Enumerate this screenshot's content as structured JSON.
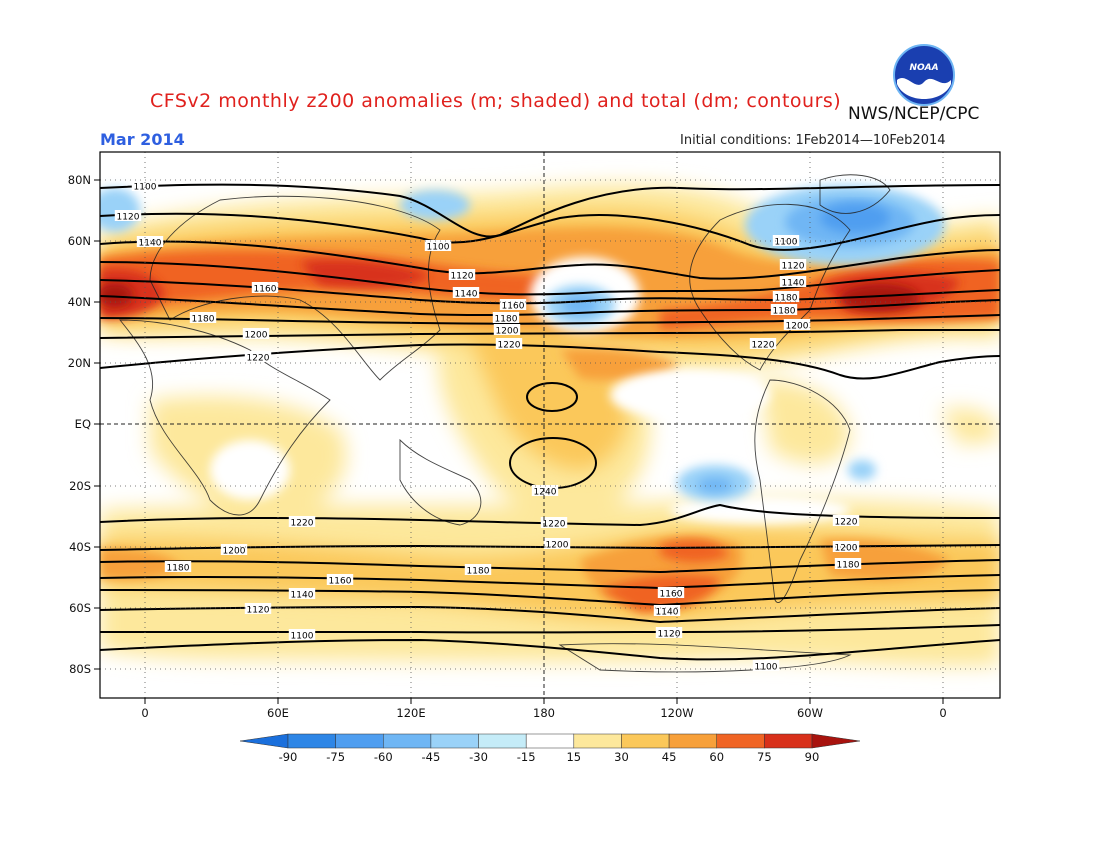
{
  "title": "CFSv2 monthly z200 anomalies (m; shaded) and total (dm; contours)",
  "month": "Mar 2014",
  "agency": "NWS/NCEP/CPC",
  "logo_text": "NOAA",
  "initial_conditions": "Initial conditions: 1Feb2014—10Feb2014",
  "lat_labels": [
    "80N",
    "60N",
    "40N",
    "20N",
    "EQ",
    "20S",
    "40S",
    "60S",
    "80S"
  ],
  "lon_labels": [
    "0",
    "60E",
    "120E",
    "180",
    "120W",
    "60W",
    "0"
  ],
  "colorbar": {
    "labels": [
      "-90",
      "-75",
      "-60",
      "-45",
      "-30",
      "-15",
      "15",
      "30",
      "45",
      "60",
      "75",
      "90"
    ],
    "colors": [
      "#1a6fdc",
      "#2e86e6",
      "#4f9ef0",
      "#6fb6f4",
      "#9ad2f8",
      "#c5ecf8",
      "#ffffff",
      "#fde89c",
      "#fbc85a",
      "#f7a03a",
      "#f06424",
      "#d8301a",
      "#a8130e"
    ]
  },
  "contour_labels": [
    "1100",
    "1120",
    "1140",
    "1160",
    "1180",
    "1200",
    "1220",
    "1240"
  ]
}
